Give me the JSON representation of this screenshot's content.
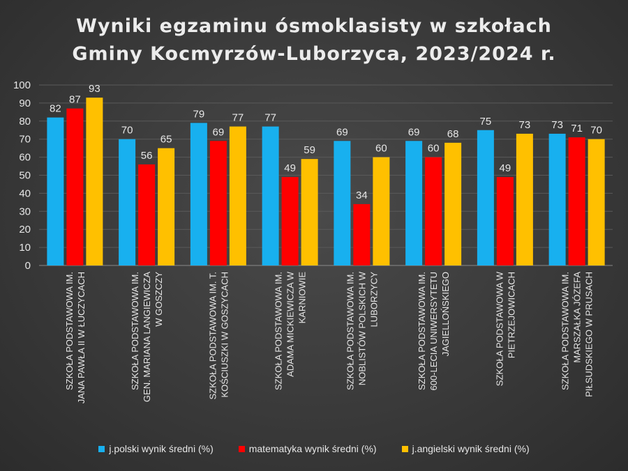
{
  "chart_data": {
    "type": "bar",
    "title_line1": "Wyniki egzaminu ósmoklasisty w  szkołach",
    "title_line2": "Gminy Kocmyrzów-Luborzyca, 2023/2024 r.",
    "ylim": [
      0,
      100
    ],
    "yticks": [
      0,
      10,
      20,
      30,
      40,
      50,
      60,
      70,
      80,
      90,
      100
    ],
    "grid": true,
    "legend_position": "bottom",
    "categories": [
      [
        "SZKOŁA PODSTAWOWA IM.",
        "JANA PAWŁA II W ŁUCZYCACH"
      ],
      [
        "SZKOŁA PODSTAWOWA IM.",
        "GEN. MARIANA LANGIEWICZA",
        "W GOSZCZY"
      ],
      [
        "SZKOŁA PODSTAWOWA IM. T.",
        "KOŚCIUSZKI W GOSZYCACH"
      ],
      [
        "SZKOŁA PODSTAWOWA IM.",
        "ADAMA MICKIEWICZA W",
        "KARNIOWIE"
      ],
      [
        "SZKOŁA PODSTAWOWA IM.",
        "NOBLISTÓW POLSKICH W",
        "LUBORZYCY"
      ],
      [
        "SZKOŁA PODSTAWOWA IM.",
        "600-LECIA UNIWERSYTETU",
        "JAGIELLOŃSKIEGO"
      ],
      [
        "SZKOŁA PODSTAWOWA W",
        "PIETRZEJOWICACH"
      ],
      [
        "SZKOŁA PODSTAWOWA IM.",
        "MARSZAŁKA JÓZEFA",
        "PIŁSUDSKIEGO W PRUSACH"
      ]
    ],
    "series": [
      {
        "name": "j.polski wynik średni (%)",
        "color": "#18b0ef",
        "values": [
          82,
          70,
          79,
          77,
          69,
          69,
          75,
          73
        ]
      },
      {
        "name": "matematyka wynik średni (%)",
        "color": "#ff0000",
        "values": [
          87,
          56,
          69,
          49,
          34,
          60,
          49,
          71
        ]
      },
      {
        "name": "j.angielski wynik średni (%)",
        "color": "#ffc000",
        "values": [
          93,
          65,
          77,
          59,
          60,
          68,
          73,
          70
        ]
      }
    ]
  }
}
